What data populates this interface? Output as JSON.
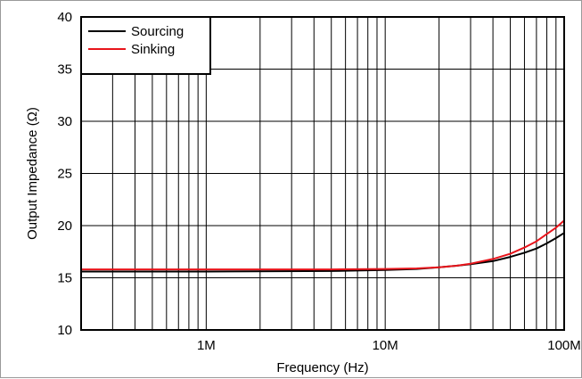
{
  "chart_data": {
    "type": "line",
    "title": "",
    "xlabel": "Frequency (Hz)",
    "ylabel": "Output Impedance (Ω)",
    "xscale": "log",
    "xlim": [
      200000,
      100000000
    ],
    "ylim": [
      10,
      40
    ],
    "yticks": [
      10,
      15,
      20,
      25,
      30,
      35,
      40
    ],
    "xticks": [
      {
        "value": 1000000,
        "label": "1M"
      },
      {
        "value": 10000000,
        "label": "10M"
      },
      {
        "value": 100000000,
        "label": "100M"
      }
    ],
    "grid": true,
    "legend_position": "top-left",
    "series": [
      {
        "name": "Sourcing",
        "color": "#000000",
        "x": [
          200000,
          1000000,
          5000000,
          10000000,
          15000000,
          20000000,
          25000000,
          30000000,
          40000000,
          50000000,
          60000000,
          70000000,
          80000000,
          90000000,
          100000000
        ],
        "y": [
          15.6,
          15.6,
          15.65,
          15.75,
          15.85,
          16.0,
          16.15,
          16.3,
          16.6,
          17.0,
          17.4,
          17.8,
          18.3,
          18.8,
          19.3
        ]
      },
      {
        "name": "Sinking",
        "color": "#e8141b",
        "x": [
          200000,
          1000000,
          5000000,
          10000000,
          15000000,
          20000000,
          25000000,
          30000000,
          40000000,
          50000000,
          60000000,
          70000000,
          80000000,
          90000000,
          100000000
        ],
        "y": [
          15.8,
          15.8,
          15.8,
          15.85,
          15.9,
          16.0,
          16.15,
          16.35,
          16.8,
          17.3,
          17.9,
          18.5,
          19.2,
          19.8,
          20.5
        ]
      }
    ]
  }
}
